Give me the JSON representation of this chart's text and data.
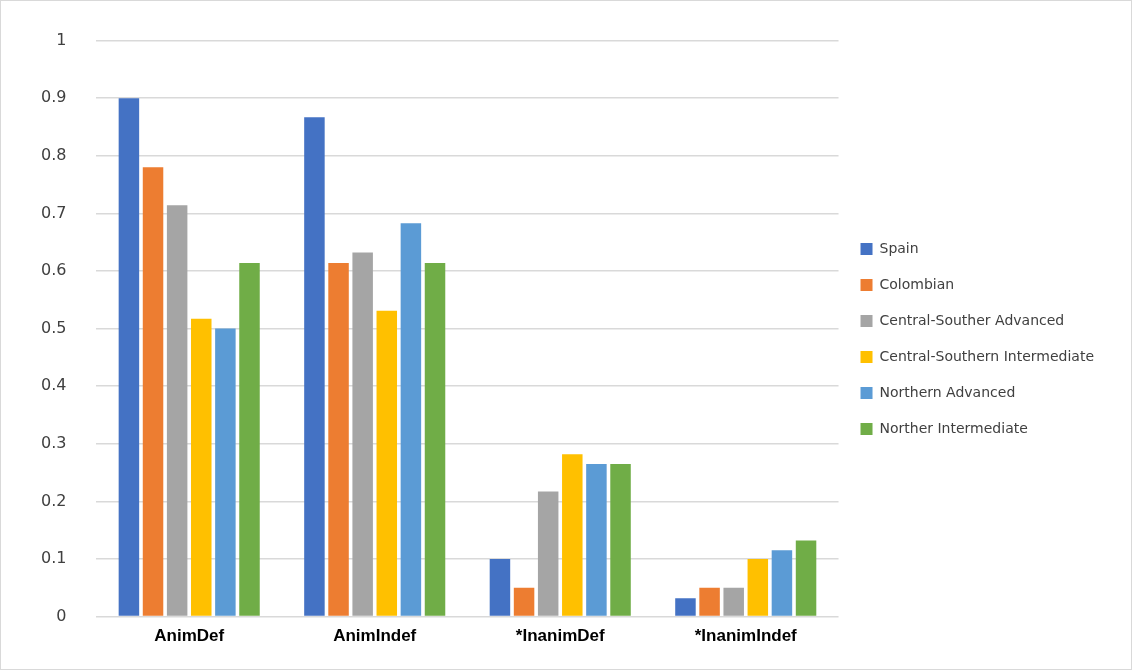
{
  "chart_data": {
    "type": "bar",
    "categories": [
      "AnimDef",
      "AnimIndef",
      "*InanimDef",
      "*InanimIndef"
    ],
    "series": [
      {
        "name": "Spain",
        "color": "#4472c4",
        "values": [
          0.9,
          0.867,
          0.1,
          0.032
        ]
      },
      {
        "name": "Colombian",
        "color": "#ed7d31",
        "values": [
          0.78,
          0.614,
          0.05,
          0.05
        ]
      },
      {
        "name": "Central-Souther Advanced",
        "color": "#a5a5a5",
        "values": [
          0.714,
          0.632,
          0.217,
          0.05
        ]
      },
      {
        "name": "Central-Southern Intermediate",
        "color": "#ffc000",
        "values": [
          0.517,
          0.531,
          0.282,
          0.1
        ]
      },
      {
        "name": "Northern Advanced",
        "color": "#5b9bd5",
        "values": [
          0.5,
          0.683,
          0.265,
          0.115
        ]
      },
      {
        "name": "Norther Intermediate",
        "color": "#70ad47",
        "values": [
          0.614,
          0.614,
          0.265,
          0.132
        ]
      }
    ],
    "ylim": [
      0,
      1
    ],
    "yticks": [
      0,
      0.1,
      0.2,
      0.3,
      0.4,
      0.5,
      0.6,
      0.7,
      0.8,
      0.9,
      1
    ],
    "grid": "y",
    "legend": "right"
  }
}
